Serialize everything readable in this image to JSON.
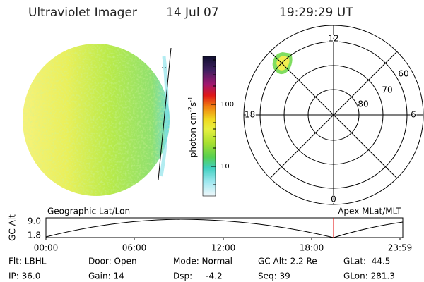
{
  "header": {
    "title": "Ultraviolet Imager",
    "date": "14 Jul 07",
    "time": "19:29:29 UT"
  },
  "colorbar": {
    "label": {
      "base": "photon cm",
      "exp1": "-2",
      "mid": "s",
      "exp2": "-1"
    },
    "ticks": [
      "100",
      "10"
    ]
  },
  "polar": {
    "hours": {
      "top": "12",
      "left": "18",
      "right": "6",
      "bottom": "0"
    },
    "latitudes": [
      "80",
      "70",
      "60"
    ]
  },
  "orbit": {
    "left_label": "Geographic Lat/Lon",
    "right_label": "Apex MLat/MLT",
    "y_label": "GC Alt",
    "y_ticks": [
      "9.0",
      "1.8"
    ],
    "x_ticks": [
      "00:00",
      "06:00",
      "12:00",
      "18:00",
      "23:59"
    ]
  },
  "info": {
    "rows": [
      [
        "Flt: LBHL",
        "Door: Open",
        "Mode: Normal",
        "GC Alt: 2.2 Re",
        "GLat:  44.5"
      ],
      [
        "IP: 36.0",
        "Gain: 14",
        "Dsp:     -4.2",
        "Seq: 39",
        "GLon: 281.3"
      ]
    ]
  }
}
